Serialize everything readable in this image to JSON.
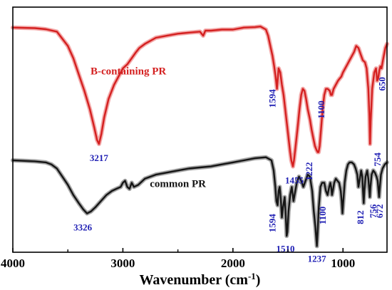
{
  "chart_data": {
    "type": "line",
    "xlabel": "Wavenumber (cm",
    "xlabel_sup": "-1",
    "xlabel_close": ")",
    "ylabel": "",
    "xlim": [
      4000,
      600
    ],
    "x_reversed": true,
    "y_ticks_shown": false,
    "grid": false,
    "x_ticks": [
      4000,
      3000,
      2000,
      1000
    ],
    "x_tick_labels": [
      "4000",
      "3000",
      "2000",
      "1000"
    ],
    "ylim": [
      -110,
      10
    ],
    "series": [
      {
        "name": "B-containing PR",
        "color": "#d42020",
        "glow": "#f3a9a9",
        "label_at": [
          2950,
          -23
        ],
        "points": [
          [
            4000,
            0
          ],
          [
            3800,
            -0.3
          ],
          [
            3700,
            -0.8
          ],
          [
            3600,
            -2
          ],
          [
            3500,
            -9
          ],
          [
            3450,
            -15
          ],
          [
            3400,
            -23
          ],
          [
            3350,
            -31
          ],
          [
            3300,
            -40
          ],
          [
            3260,
            -49
          ],
          [
            3235,
            -55
          ],
          [
            3217,
            -57
          ],
          [
            3195,
            -52
          ],
          [
            3170,
            -44
          ],
          [
            3130,
            -35
          ],
          [
            3080,
            -28
          ],
          [
            3030,
            -23
          ],
          [
            3000,
            -20
          ],
          [
            2960,
            -18
          ],
          [
            2920,
            -15
          ],
          [
            2880,
            -12
          ],
          [
            2850,
            -10
          ],
          [
            2800,
            -8
          ],
          [
            2700,
            -5
          ],
          [
            2600,
            -4
          ],
          [
            2500,
            -3
          ],
          [
            2400,
            -2.5
          ],
          [
            2300,
            -2
          ],
          [
            2270,
            -4
          ],
          [
            2250,
            -1.5
          ],
          [
            2200,
            -1.5
          ],
          [
            2100,
            -1
          ],
          [
            2000,
            -1
          ],
          [
            1900,
            0
          ],
          [
            1800,
            0.2
          ],
          [
            1750,
            0.5
          ],
          [
            1700,
            -1
          ],
          [
            1680,
            -4
          ],
          [
            1660,
            -9
          ],
          [
            1640,
            -14
          ],
          [
            1625,
            -19
          ],
          [
            1612,
            -24
          ],
          [
            1600,
            -30
          ],
          [
            1594,
            -26
          ],
          [
            1585,
            -20
          ],
          [
            1570,
            -22
          ],
          [
            1555,
            -28
          ],
          [
            1540,
            -33
          ],
          [
            1525,
            -40
          ],
          [
            1510,
            -47
          ],
          [
            1495,
            -54
          ],
          [
            1480,
            -61
          ],
          [
            1470,
            -65
          ],
          [
            1460,
            -67
          ],
          [
            1455,
            -68
          ],
          [
            1445,
            -65
          ],
          [
            1430,
            -58
          ],
          [
            1410,
            -48
          ],
          [
            1395,
            -40
          ],
          [
            1380,
            -33
          ],
          [
            1365,
            -30
          ],
          [
            1350,
            -31
          ],
          [
            1335,
            -35
          ],
          [
            1320,
            -40
          ],
          [
            1300,
            -45
          ],
          [
            1285,
            -50
          ],
          [
            1270,
            -54
          ],
          [
            1255,
            -58
          ],
          [
            1240,
            -60
          ],
          [
            1230,
            -61
          ],
          [
            1222,
            -61
          ],
          [
            1212,
            -58
          ],
          [
            1200,
            -50
          ],
          [
            1185,
            -40
          ],
          [
            1170,
            -33
          ],
          [
            1155,
            -30
          ],
          [
            1140,
            -30
          ],
          [
            1120,
            -31
          ],
          [
            1110,
            -33
          ],
          [
            1100,
            -33
          ],
          [
            1085,
            -30
          ],
          [
            1065,
            -28
          ],
          [
            1045,
            -26
          ],
          [
            1030,
            -25
          ],
          [
            1015,
            -24
          ],
          [
            1000,
            -22
          ],
          [
            980,
            -20
          ],
          [
            960,
            -18
          ],
          [
            940,
            -16
          ],
          [
            920,
            -14
          ],
          [
            900,
            -12
          ],
          [
            880,
            -9
          ],
          [
            860,
            -10
          ],
          [
            840,
            -13
          ],
          [
            820,
            -16
          ],
          [
            800,
            -17
          ],
          [
            785,
            -20
          ],
          [
            770,
            -30
          ],
          [
            760,
            -43
          ],
          [
            754,
            -57
          ],
          [
            748,
            -46
          ],
          [
            735,
            -30
          ],
          [
            715,
            -22
          ],
          [
            700,
            -20
          ],
          [
            690,
            -26
          ],
          [
            680,
            -25
          ],
          [
            670,
            -21
          ],
          [
            660,
            -19
          ],
          [
            650,
            -20
          ],
          [
            640,
            -17
          ],
          [
            630,
            -14
          ],
          [
            615,
            -10
          ],
          [
            600,
            -8
          ]
        ],
        "peaks": [
          {
            "x": 3217,
            "label": "3217",
            "orient": "h",
            "dx": 0,
            "dy": 20
          },
          {
            "x": 1594,
            "label": "1594",
            "orient": "v",
            "dx": -6,
            "dy": 12
          },
          {
            "x": 1455,
            "label": "1455",
            "orient": "h",
            "dx": 2,
            "dy": 20
          },
          {
            "x": 1222,
            "label": "1222",
            "orient": "v",
            "dx": -12,
            "dy": 14
          },
          {
            "x": 1100,
            "label": "1100",
            "orient": "v",
            "dx": -14,
            "dy": 8
          },
          {
            "x": 754,
            "label": "754",
            "orient": "v",
            "dx": 12,
            "dy": 12
          },
          {
            "x": 650,
            "label": "650",
            "orient": "v",
            "dx": 2,
            "dy": 12
          }
        ]
      },
      {
        "name": "common PR",
        "color": "#151515",
        "glow": "#a6a6a6",
        "label_at": [
          2500,
          -78
        ],
        "points": [
          [
            4000,
            -65
          ],
          [
            3800,
            -65.5
          ],
          [
            3700,
            -66
          ],
          [
            3650,
            -67
          ],
          [
            3600,
            -69
          ],
          [
            3550,
            -73
          ],
          [
            3500,
            -77
          ],
          [
            3450,
            -82
          ],
          [
            3400,
            -86
          ],
          [
            3360,
            -89
          ],
          [
            3326,
            -91
          ],
          [
            3290,
            -90
          ],
          [
            3250,
            -88
          ],
          [
            3200,
            -85
          ],
          [
            3150,
            -82
          ],
          [
            3100,
            -80
          ],
          [
            3060,
            -79
          ],
          [
            3020,
            -78
          ],
          [
            3000,
            -76
          ],
          [
            2980,
            -75
          ],
          [
            2960,
            -78
          ],
          [
            2940,
            -79
          ],
          [
            2920,
            -76
          ],
          [
            2900,
            -78
          ],
          [
            2860,
            -77
          ],
          [
            2800,
            -74
          ],
          [
            2700,
            -72
          ],
          [
            2600,
            -71
          ],
          [
            2500,
            -70
          ],
          [
            2400,
            -69
          ],
          [
            2300,
            -68.5
          ],
          [
            2200,
            -68
          ],
          [
            2100,
            -67
          ],
          [
            2000,
            -66
          ],
          [
            1900,
            -65
          ],
          [
            1800,
            -64
          ],
          [
            1700,
            -63.5
          ],
          [
            1650,
            -65
          ],
          [
            1630,
            -70
          ],
          [
            1615,
            -78
          ],
          [
            1605,
            -85
          ],
          [
            1594,
            -87
          ],
          [
            1585,
            -80
          ],
          [
            1575,
            -78
          ],
          [
            1565,
            -84
          ],
          [
            1555,
            -93
          ],
          [
            1545,
            -88
          ],
          [
            1530,
            -83
          ],
          [
            1520,
            -92
          ],
          [
            1512,
            -102
          ],
          [
            1505,
            -100
          ],
          [
            1495,
            -90
          ],
          [
            1480,
            -82
          ],
          [
            1465,
            -78
          ],
          [
            1450,
            -85
          ],
          [
            1440,
            -82
          ],
          [
            1420,
            -76
          ],
          [
            1400,
            -73
          ],
          [
            1380,
            -75
          ],
          [
            1360,
            -78
          ],
          [
            1340,
            -75
          ],
          [
            1320,
            -72
          ],
          [
            1300,
            -73
          ],
          [
            1280,
            -80
          ],
          [
            1265,
            -90
          ],
          [
            1250,
            -98
          ],
          [
            1242,
            -104
          ],
          [
            1237,
            -107
          ],
          [
            1230,
            -100
          ],
          [
            1220,
            -88
          ],
          [
            1205,
            -78
          ],
          [
            1190,
            -76
          ],
          [
            1170,
            -76
          ],
          [
            1155,
            -80
          ],
          [
            1140,
            -82
          ],
          [
            1125,
            -78
          ],
          [
            1115,
            -76
          ],
          [
            1108,
            -78
          ],
          [
            1100,
            -82
          ],
          [
            1092,
            -80
          ],
          [
            1080,
            -76
          ],
          [
            1065,
            -74
          ],
          [
            1050,
            -75
          ],
          [
            1035,
            -76
          ],
          [
            1020,
            -80
          ],
          [
            1012,
            -85
          ],
          [
            1005,
            -91
          ],
          [
            998,
            -86
          ],
          [
            985,
            -76
          ],
          [
            970,
            -70
          ],
          [
            955,
            -67
          ],
          [
            940,
            -66
          ],
          [
            920,
            -66
          ],
          [
            900,
            -67
          ],
          [
            885,
            -69
          ],
          [
            870,
            -72
          ],
          [
            860,
            -78
          ],
          [
            850,
            -75
          ],
          [
            835,
            -70
          ],
          [
            825,
            -73
          ],
          [
            818,
            -80
          ],
          [
            812,
            -86
          ],
          [
            806,
            -80
          ],
          [
            795,
            -73
          ],
          [
            780,
            -70
          ],
          [
            770,
            -74
          ],
          [
            762,
            -79
          ],
          [
            756,
            -83
          ],
          [
            750,
            -78
          ],
          [
            740,
            -72
          ],
          [
            725,
            -70
          ],
          [
            710,
            -71
          ],
          [
            695,
            -73
          ],
          [
            685,
            -75
          ],
          [
            677,
            -80
          ],
          [
            672,
            -83
          ],
          [
            665,
            -78
          ],
          [
            655,
            -72
          ],
          [
            640,
            -69
          ],
          [
            620,
            -67
          ],
          [
            600,
            -66
          ]
        ],
        "peaks": [
          {
            "x": 3326,
            "label": "3326",
            "orient": "h",
            "dx": -6,
            "dy": 20
          },
          {
            "x": 1594,
            "label": "1594",
            "orient": "v",
            "dx": -6,
            "dy": 12
          },
          {
            "x": 1510,
            "label": "1510",
            "orient": "h",
            "dx": -2,
            "dy": 20
          },
          {
            "x": 1237,
            "label": "1237",
            "orient": "h",
            "dx": 0,
            "dy": 18
          },
          {
            "x": 1100,
            "label": "1100",
            "orient": "v",
            "dx": -12,
            "dy": 16
          },
          {
            "x": 812,
            "label": "812",
            "orient": "v",
            "dx": -3,
            "dy": 10
          },
          {
            "x": 756,
            "label": "756",
            "orient": "v",
            "dx": 6,
            "dy": 10
          },
          {
            "x": 672,
            "label": "672",
            "orient": "v",
            "dx": 2,
            "dy": 10
          }
        ]
      }
    ]
  }
}
